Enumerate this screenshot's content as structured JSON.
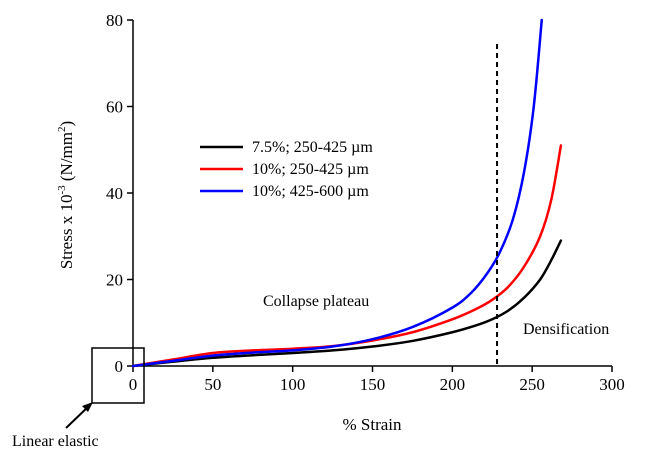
{
  "chart_data": {
    "type": "line",
    "title": "",
    "xlabel": "% Strain",
    "ylabel_main": "Stress x 10",
    "ylabel_exp": "-3",
    "ylabel_unit": " (N/mm",
    "ylabel_unit_exp": "2",
    "ylabel_close": ")",
    "xlim": [
      0,
      300
    ],
    "ylim": [
      0,
      80
    ],
    "xticks": [
      0,
      50,
      100,
      150,
      200,
      250,
      300
    ],
    "yticks": [
      0,
      20,
      40,
      60,
      80
    ],
    "grid": false,
    "legend_position": "upper-left",
    "series": [
      {
        "name": "7.5%; 250-425 µm",
        "color": "#000000",
        "x": [
          0,
          25,
          50,
          75,
          100,
          125,
          150,
          175,
          200,
          215,
          225,
          235,
          245,
          255,
          262,
          268
        ],
        "y": [
          0,
          1.0,
          1.9,
          2.5,
          3.0,
          3.6,
          4.5,
          5.8,
          7.8,
          9.4,
          10.8,
          12.8,
          15.8,
          20.0,
          24.5,
          29.0
        ]
      },
      {
        "name": "10%; 250-425 µm",
        "color": "#ff0000",
        "x": [
          0,
          25,
          50,
          75,
          100,
          125,
          150,
          175,
          200,
          215,
          225,
          235,
          245,
          255,
          262,
          268
        ],
        "y": [
          0,
          1.5,
          3.0,
          3.6,
          4.0,
          4.6,
          5.9,
          7.8,
          10.8,
          13.2,
          15.3,
          18.3,
          23.0,
          30.0,
          38.5,
          51.0
        ]
      },
      {
        "name": "10%; 425-600 µm",
        "color": "#0000ff",
        "x": [
          0,
          25,
          50,
          75,
          100,
          125,
          150,
          175,
          200,
          212,
          222,
          230,
          238,
          245,
          251,
          256
        ],
        "y": [
          0,
          1.2,
          2.4,
          3.1,
          3.6,
          4.5,
          6.2,
          9.0,
          13.5,
          17.0,
          21.5,
          26.5,
          34.0,
          45.0,
          60.0,
          80.0
        ]
      }
    ],
    "vline_x": 228,
    "annotations": {
      "collapse": "Collapse plateau",
      "densification": "Densification",
      "linear": "Linear elastic"
    }
  }
}
